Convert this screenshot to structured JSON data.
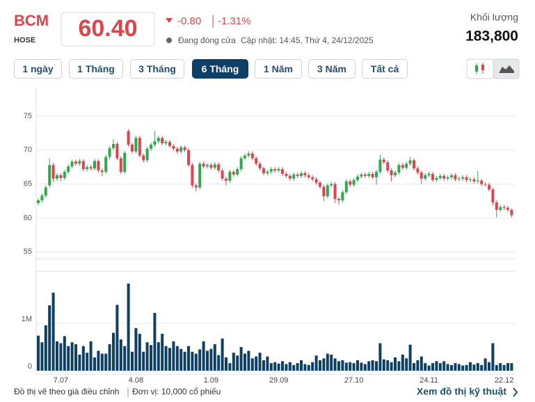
{
  "header": {
    "symbol": "BCM",
    "exchange": "HOSE",
    "price": "60.40",
    "change": "-0.80",
    "change_pct": "-1.31%",
    "status": "Đang đóng cửa",
    "updated": "Cập nhật: 14:45, Thứ 4, 24/12/2025",
    "volume_label": "Khối lượng",
    "volume": "183,800",
    "ranges": [
      "1 ngày",
      "1 Tháng",
      "3 Tháng",
      "6 Tháng",
      "1 Năm",
      "3 Năm",
      "Tất cả"
    ],
    "active_range": 3
  },
  "footer": {
    "note": "Đồ thị vẽ theo giá điều chỉnh",
    "unit": "Đơn vị: 10,000 cổ phiếu",
    "link": "Xem đồ thị kỹ thuật"
  },
  "chart_data": [
    {
      "type": "candlestick",
      "up_color": "#2bab4c",
      "down_color": "#e2434b",
      "ylim": [
        54,
        79
      ],
      "yticks": [
        55,
        60,
        65,
        70,
        75
      ],
      "grid": true,
      "open": [
        62.2,
        62.6,
        63.3,
        64.8,
        67.8,
        65.8,
        66.3,
        65.9,
        66.8,
        67.6,
        68.3,
        68.0,
        68.4,
        67.2,
        67.5,
        67.3,
        68.4,
        67.0,
        66.8,
        69.0,
        70.3,
        70.9,
        68.8,
        66.8,
        72.8,
        70.8,
        69.8,
        71.8,
        69.2,
        68.5,
        70.2,
        70.8,
        71.3,
        71.8,
        71.0,
        71.2,
        70.6,
        70.2,
        69.8,
        70.4,
        70.0,
        67.8,
        64.8,
        64.5,
        68.0,
        67.6,
        67.8,
        67.4,
        67.9,
        67.0,
        65.8,
        65.5,
        66.8,
        66.4,
        67.2,
        68.8,
        69.2,
        69.5,
        68.8,
        68.0,
        67.3,
        66.6,
        66.8,
        67.2,
        67.0,
        67.2,
        66.5,
        66.2,
        65.8,
        66.4,
        66.2,
        66.6,
        66.3,
        66.0,
        65.7,
        65.2,
        64.6,
        63.2,
        64.8,
        65.0,
        62.8,
        62.6,
        63.8,
        65.4,
        64.9,
        65.6,
        66.1,
        66.4,
        66.2,
        66.5,
        66.0,
        66.8,
        68.6,
        68.2,
        67.0,
        66.3,
        66.7,
        67.8,
        67.4,
        68.0,
        68.5,
        67.3,
        66.7,
        65.8,
        66.3,
        66.5,
        65.6,
        65.9,
        66.2,
        65.8,
        66.0,
        66.3,
        65.7,
        65.8,
        66.0,
        65.6,
        65.7,
        65.4,
        65.5,
        65.0,
        64.9,
        64.2,
        62.3,
        61.2,
        61.6,
        61.5,
        61.2
      ],
      "high": [
        62.9,
        63.6,
        64.8,
        68.8,
        68.1,
        66.6,
        66.6,
        67.1,
        67.9,
        68.6,
        68.6,
        68.7,
        68.7,
        67.8,
        67.8,
        68.7,
        68.7,
        67.3,
        69.3,
        70.6,
        71.6,
        71.2,
        69.1,
        69.9,
        73.1,
        71.1,
        72.1,
        72.1,
        69.5,
        70.5,
        71.1,
        72.8,
        72.1,
        72.1,
        71.5,
        71.5,
        70.9,
        70.5,
        70.7,
        70.7,
        70.3,
        68.1,
        65.1,
        68.3,
        68.3,
        68.1,
        68.1,
        68.2,
        68.2,
        67.3,
        66.1,
        67.1,
        67.1,
        67.5,
        69.1,
        69.5,
        69.8,
        69.8,
        69.1,
        68.3,
        67.6,
        67.1,
        67.5,
        67.5,
        67.5,
        67.5,
        66.8,
        66.5,
        66.7,
        66.7,
        66.9,
        66.9,
        66.6,
        66.3,
        66.0,
        65.5,
        64.9,
        65.1,
        65.3,
        65.3,
        63.1,
        64.1,
        65.7,
        65.7,
        65.9,
        66.4,
        66.7,
        66.7,
        66.8,
        66.8,
        67.1,
        69.3,
        68.9,
        68.5,
        67.3,
        67.0,
        68.1,
        68.1,
        68.3,
        69.0,
        68.8,
        67.6,
        67.0,
        66.6,
        66.8,
        66.8,
        66.2,
        66.5,
        66.5,
        66.3,
        66.6,
        66.6,
        66.1,
        66.3,
        66.3,
        66.0,
        66.0,
        66.9,
        65.8,
        65.3,
        65.2,
        64.5,
        62.6,
        61.9,
        61.9,
        61.8,
        61.4
      ],
      "low": [
        61.9,
        62.3,
        63.0,
        64.5,
        65.3,
        65.5,
        65.4,
        65.6,
        66.5,
        67.3,
        67.7,
        67.7,
        66.9,
        66.9,
        67.0,
        67.0,
        66.7,
        66.2,
        66.5,
        68.7,
        70.0,
        68.5,
        66.5,
        66.5,
        70.5,
        69.5,
        69.5,
        68.9,
        68.2,
        68.2,
        69.9,
        70.5,
        71.0,
        70.7,
        70.7,
        70.3,
        69.9,
        69.5,
        69.5,
        69.7,
        67.5,
        64.5,
        63.9,
        64.2,
        67.3,
        67.3,
        67.1,
        67.1,
        66.7,
        65.5,
        64.8,
        65.2,
        66.1,
        66.1,
        66.9,
        68.5,
        68.9,
        68.5,
        67.7,
        67.0,
        66.3,
        66.3,
        66.5,
        66.7,
        66.7,
        66.2,
        65.9,
        65.5,
        65.5,
        65.9,
        65.9,
        66.0,
        65.7,
        65.4,
        64.9,
        64.3,
        62.5,
        62.9,
        64.5,
        62.2,
        62.0,
        62.3,
        63.5,
        64.6,
        64.6,
        65.3,
        65.8,
        65.9,
        65.9,
        65.7,
        64.9,
        66.5,
        67.9,
        66.7,
        65.4,
        66.0,
        66.4,
        67.1,
        67.1,
        67.7,
        67.0,
        66.4,
        65.0,
        65.5,
        66.0,
        65.3,
        65.3,
        65.6,
        65.5,
        65.5,
        65.7,
        65.4,
        65.4,
        65.5,
        65.3,
        65.3,
        65.1,
        65.1,
        64.7,
        64.6,
        63.9,
        61.9,
        60.1,
        60.9,
        61.2,
        60.9,
        60.1
      ],
      "close": [
        62.6,
        63.3,
        64.5,
        67.8,
        65.8,
        66.3,
        65.9,
        66.8,
        67.6,
        68.3,
        68.0,
        68.4,
        67.2,
        67.5,
        67.3,
        68.4,
        67.0,
        66.8,
        69.0,
        70.3,
        70.9,
        68.8,
        66.8,
        69.6,
        70.8,
        69.8,
        71.8,
        69.2,
        68.5,
        70.2,
        70.8,
        71.3,
        71.8,
        71.0,
        71.2,
        70.6,
        70.2,
        69.8,
        70.4,
        70.0,
        67.8,
        64.8,
        64.5,
        68.0,
        67.6,
        67.8,
        67.4,
        67.9,
        67.0,
        65.8,
        65.5,
        66.8,
        66.4,
        67.2,
        68.8,
        69.2,
        69.5,
        68.8,
        68.0,
        67.3,
        66.6,
        66.8,
        67.2,
        67.0,
        67.2,
        66.5,
        66.2,
        65.8,
        66.4,
        66.2,
        66.6,
        66.3,
        66.0,
        65.7,
        65.2,
        64.6,
        63.2,
        64.8,
        65.0,
        62.8,
        62.6,
        63.8,
        65.4,
        64.9,
        65.6,
        66.1,
        66.4,
        66.2,
        66.5,
        66.0,
        66.8,
        68.6,
        68.2,
        67.0,
        66.3,
        66.7,
        67.8,
        67.4,
        68.0,
        68.5,
        67.3,
        66.7,
        65.8,
        66.3,
        66.5,
        65.6,
        65.9,
        66.2,
        65.8,
        66.0,
        66.3,
        65.7,
        65.8,
        66.0,
        65.6,
        65.7,
        65.4,
        65.5,
        65.0,
        64.9,
        64.2,
        62.3,
        61.2,
        61.6,
        61.5,
        61.2,
        60.4
      ]
    },
    {
      "type": "bar",
      "color": "#0e3f66",
      "ylim": [
        0,
        2100000
      ],
      "yticks": [
        0,
        {
          "value": 1000000,
          "label": "1M"
        }
      ],
      "grid": true,
      "categories": [
        null,
        null,
        null,
        null,
        null,
        null,
        "7.07",
        null,
        null,
        null,
        null,
        null,
        null,
        null,
        null,
        null,
        null,
        null,
        null,
        null,
        null,
        null,
        null,
        null,
        null,
        null,
        "4.08",
        null,
        null,
        null,
        null,
        null,
        null,
        null,
        null,
        null,
        null,
        null,
        null,
        null,
        null,
        null,
        null,
        null,
        null,
        null,
        "1.09",
        null,
        null,
        null,
        null,
        null,
        null,
        null,
        null,
        null,
        null,
        null,
        null,
        null,
        null,
        null,
        null,
        null,
        "29.09",
        null,
        null,
        null,
        null,
        null,
        null,
        null,
        null,
        null,
        null,
        null,
        null,
        null,
        null,
        null,
        null,
        null,
        null,
        null,
        "27.10",
        null,
        null,
        null,
        null,
        null,
        null,
        null,
        null,
        null,
        null,
        null,
        null,
        null,
        null,
        null,
        null,
        null,
        null,
        null,
        "24.11",
        null,
        null,
        null,
        null,
        null,
        null,
        null,
        null,
        null,
        null,
        null,
        null,
        null,
        null,
        null,
        null,
        null,
        null,
        null,
        "22.12",
        null,
        null
      ],
      "values": [
        740000,
        600000,
        960000,
        1380000,
        1650000,
        620000,
        580000,
        730000,
        520000,
        600000,
        560000,
        340000,
        520000,
        380000,
        620000,
        280000,
        420000,
        360000,
        360000,
        560000,
        800000,
        1390000,
        660000,
        520000,
        1840000,
        400000,
        900000,
        780000,
        400000,
        600000,
        540000,
        1220000,
        600000,
        780000,
        520000,
        480000,
        620000,
        520000,
        460000,
        400000,
        520000,
        400000,
        360000,
        450000,
        620000,
        420000,
        460000,
        560000,
        330000,
        680000,
        280000,
        160000,
        380000,
        320000,
        500000,
        360000,
        420000,
        260000,
        300000,
        380000,
        220000,
        300000,
        160000,
        180000,
        150000,
        200000,
        140000,
        180000,
        120000,
        160000,
        220000,
        140000,
        120000,
        180000,
        320000,
        220000,
        260000,
        360000,
        340000,
        260000,
        200000,
        220000,
        170000,
        180000,
        160000,
        220000,
        170000,
        140000,
        200000,
        220000,
        200000,
        580000,
        240000,
        220000,
        180000,
        280000,
        200000,
        340000,
        260000,
        550000,
        160000,
        220000,
        300000,
        160000,
        110000,
        160000,
        200000,
        160000,
        200000,
        140000,
        120000,
        160000,
        140000,
        110000,
        120000,
        180000,
        130000,
        160000,
        120000,
        260000,
        180000,
        580000,
        120000,
        160000,
        120000,
        160000,
        160000
      ]
    }
  ]
}
